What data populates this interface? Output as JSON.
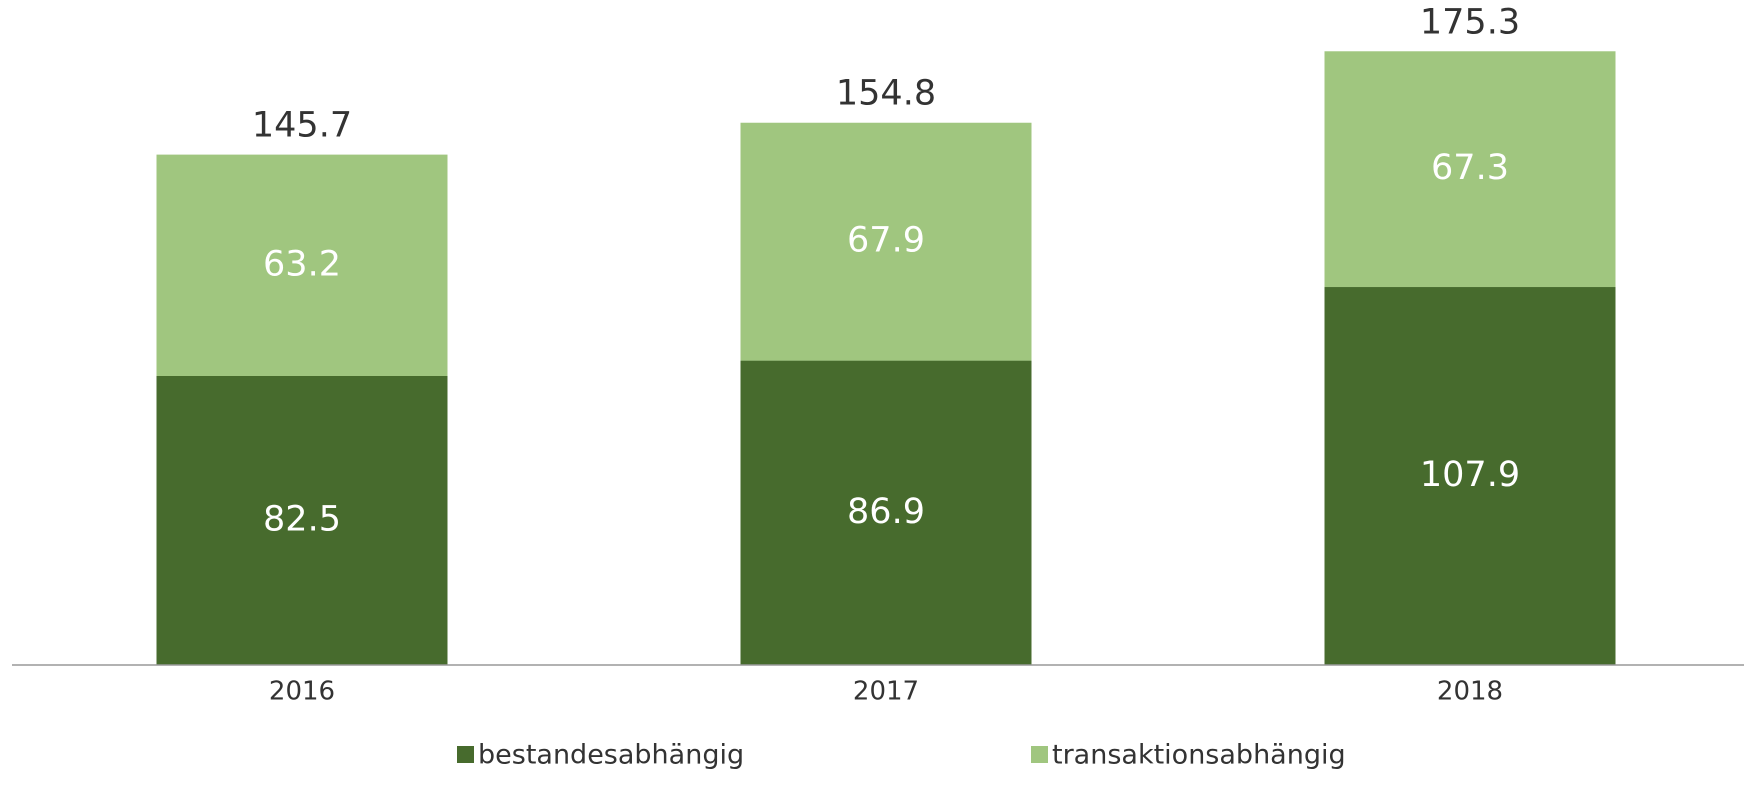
{
  "chart_data": {
    "type": "stacked_bar",
    "categories": [
      "2016",
      "2017",
      "2018"
    ],
    "series": [
      {
        "name": "bestandesabhängig",
        "color": "#476b2d",
        "values": [
          82.5,
          86.9,
          107.9
        ]
      },
      {
        "name": "transaktionsabhängig",
        "color": "#a0c67f",
        "values": [
          63.2,
          67.9,
          67.3
        ]
      }
    ],
    "totals": [
      145.7,
      154.8,
      175.3
    ]
  }
}
